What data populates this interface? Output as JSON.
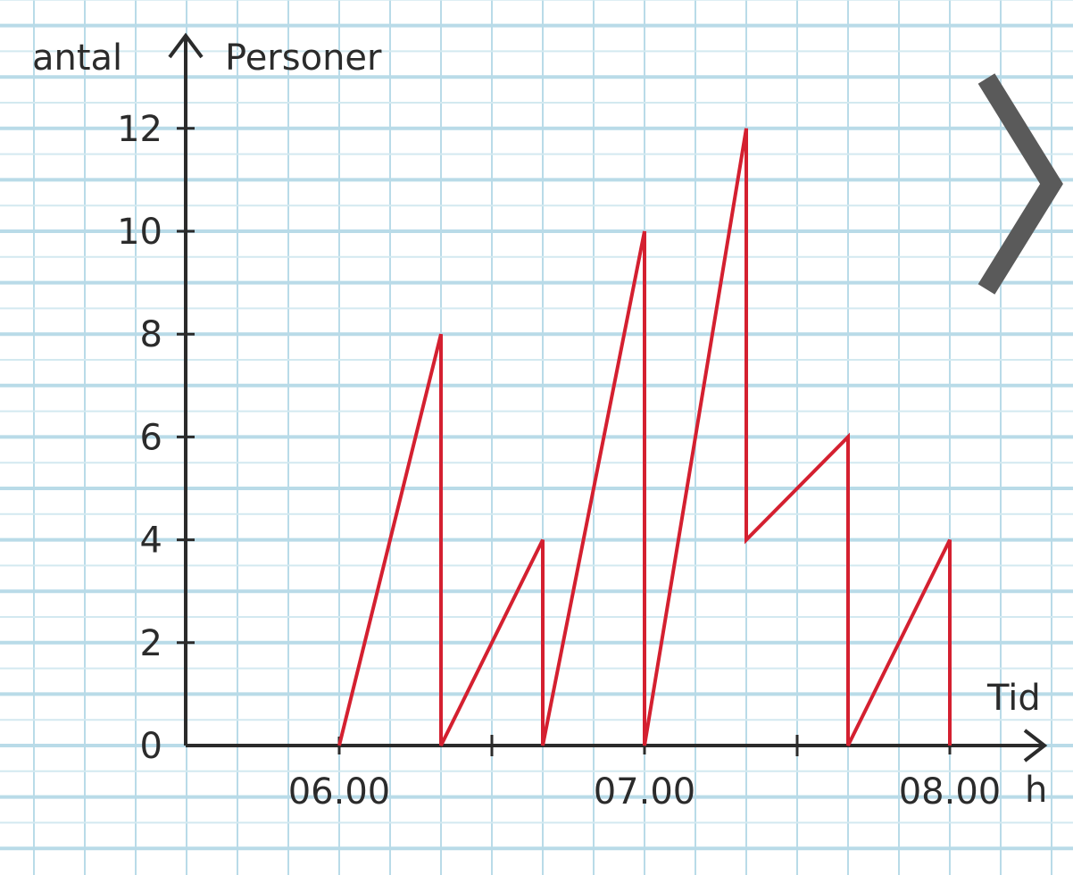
{
  "chart_data": {
    "type": "line",
    "ylabel": "antal",
    "ylabel_suffix": "Personer",
    "xlabel": "Tid",
    "xunit": "h",
    "ylim": [
      0,
      13
    ],
    "xlim": [
      "05:30",
      "08:15"
    ],
    "yticks": [
      0,
      2,
      4,
      6,
      8,
      10,
      12
    ],
    "xtick_labels": [
      {
        "x": "06:00",
        "label": "06.00"
      },
      {
        "x": "07:00",
        "label": "07.00"
      },
      {
        "x": "08:00",
        "label": "08.00"
      }
    ],
    "minor_xticks": [
      "06:30",
      "07:30"
    ],
    "grid": true,
    "series": [
      {
        "color": "#d42030",
        "x": [
          "06:00",
          "06:20",
          "06:20",
          "06:40",
          "06:40",
          "07:00",
          "07:00",
          "07:20",
          "07:20",
          "07:40",
          "07:40",
          "08:00",
          "08:00"
        ],
        "y": [
          0,
          8,
          0,
          4,
          0,
          10,
          0,
          12,
          4,
          6,
          0,
          4,
          0
        ]
      }
    ]
  },
  "next_icon": "chevron-right-icon",
  "colors": {
    "grid_major": "#b9dbe8",
    "grid_minor": "#d3e9f0",
    "axis": "#2b2b2b",
    "chevron": "#5a5a5a"
  }
}
